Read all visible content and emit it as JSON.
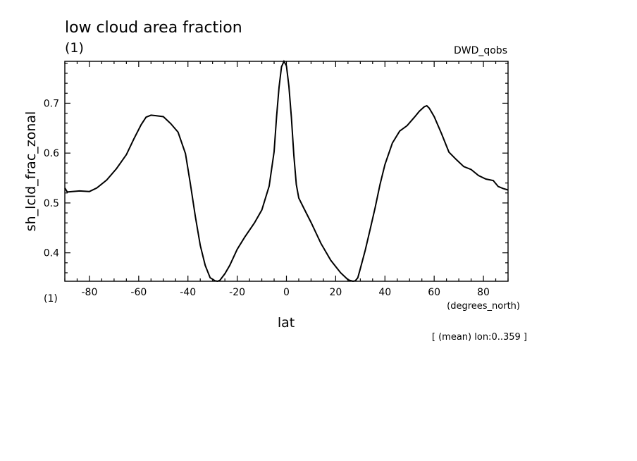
{
  "chart_data": {
    "type": "line",
    "title": "low cloud area fraction",
    "units_label": "(1)",
    "dataset_label": "DWD_qobs",
    "xlabel": "lat",
    "x_units": "(degrees_north)",
    "ylabel": "sh_lcld_frac_zonal",
    "y_units_corner": "(1)",
    "footnote": "[ (mean) lon:0..359 ]",
    "xlim": [
      -90,
      90
    ],
    "ylim": [
      0.343,
      0.784
    ],
    "x_ticks": [
      -80,
      -60,
      -40,
      -20,
      0,
      20,
      40,
      60,
      80
    ],
    "x_tick_labels": [
      "-80",
      "-60",
      "-40",
      "-20",
      "0",
      "20",
      "40",
      "60",
      "80"
    ],
    "y_ticks": [
      0.4,
      0.5,
      0.6,
      0.7
    ],
    "y_tick_labels": [
      "0.4",
      "0.5",
      "0.6",
      "0.7"
    ],
    "grid": false,
    "series": [
      {
        "x": [
          -90,
          -89,
          -87,
          -84,
          -80,
          -77,
          -73,
          -69,
          -65,
          -62,
          -59,
          -57,
          -55,
          -53,
          -50,
          -47,
          -44,
          -41,
          -39,
          -37,
          -35,
          -33,
          -31,
          -29,
          -28,
          -27,
          -25,
          -23,
          -20,
          -17,
          -13,
          -10,
          -7,
          -5,
          -4,
          -3,
          -2,
          -1,
          0,
          1,
          2,
          3,
          4,
          5,
          7,
          10,
          14,
          18,
          22,
          25,
          27,
          28,
          29,
          30,
          32,
          34,
          36,
          38,
          40,
          43,
          46,
          49,
          52,
          54,
          56,
          57,
          58,
          60,
          63,
          66,
          69,
          72,
          75,
          78,
          81,
          84,
          86,
          88,
          90
        ],
        "y": [
          0.53,
          0.522,
          0.523,
          0.524,
          0.523,
          0.53,
          0.546,
          0.569,
          0.597,
          0.628,
          0.657,
          0.672,
          0.676,
          0.675,
          0.673,
          0.659,
          0.642,
          0.599,
          0.538,
          0.473,
          0.415,
          0.375,
          0.35,
          0.344,
          0.343,
          0.345,
          0.358,
          0.375,
          0.407,
          0.431,
          0.46,
          0.486,
          0.534,
          0.603,
          0.673,
          0.732,
          0.773,
          0.784,
          0.775,
          0.734,
          0.672,
          0.596,
          0.537,
          0.51,
          0.49,
          0.461,
          0.419,
          0.385,
          0.36,
          0.346,
          0.343,
          0.344,
          0.35,
          0.368,
          0.405,
          0.447,
          0.49,
          0.537,
          0.577,
          0.62,
          0.644,
          0.655,
          0.672,
          0.684,
          0.693,
          0.695,
          0.69,
          0.673,
          0.639,
          0.602,
          0.587,
          0.573,
          0.567,
          0.555,
          0.548,
          0.545,
          0.533,
          0.529,
          0.526
        ]
      }
    ]
  }
}
